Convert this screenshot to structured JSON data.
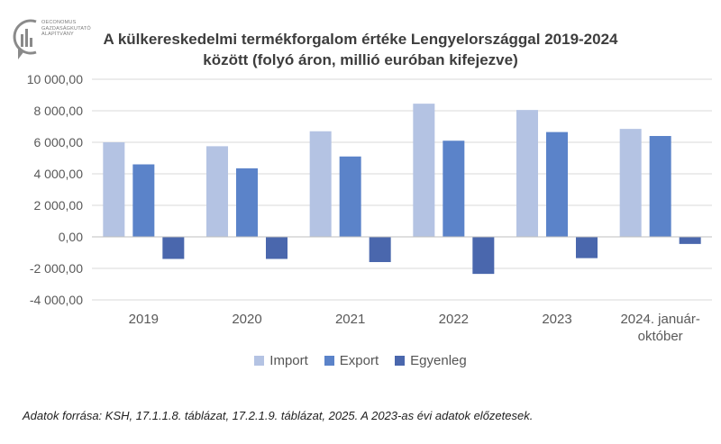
{
  "logo": {
    "line1": "OECONOMUS",
    "line2": "GAZDASÁGKUTATÓ",
    "line3": "ALAPÍTVÁNY"
  },
  "title": {
    "line1": "A külkereskedelmi termékforgalom értéke Lengyelországgal 2019-2024",
    "line2": "között (folyó áron, millió euróban kifejezve)"
  },
  "source": "Adatok forrása: KSH, 17.1.1.8. táblázat, 17.2.1.9. táblázat, 2025. A 2023-as évi adatok előzetesek.",
  "colors": {
    "import": "#b4c3e3",
    "export": "#5b83c9",
    "egyenleg": "#4a67ad",
    "grid": "#d9d9d9",
    "axis_text": "#595959"
  },
  "chart_data": {
    "type": "bar",
    "title": "A külkereskedelmi termékforgalom értéke Lengyelországgal 2019-2024 között (folyó áron, millió euróban kifejezve)",
    "categories": [
      "2019",
      "2020",
      "2021",
      "2022",
      "2023",
      "2024. január-október"
    ],
    "category_lines": [
      [
        "2019"
      ],
      [
        "2020"
      ],
      [
        "2021"
      ],
      [
        "2022"
      ],
      [
        "2023"
      ],
      [
        "2024. január-",
        "október"
      ]
    ],
    "series": [
      {
        "name": "Import",
        "values": [
          6000,
          5750,
          6700,
          8450,
          8050,
          6850
        ]
      },
      {
        "name": "Export",
        "values": [
          4600,
          4350,
          5100,
          6100,
          6650,
          6400
        ]
      },
      {
        "name": "Egyenleg",
        "values": [
          -1400,
          -1400,
          -1600,
          -2350,
          -1350,
          -450
        ]
      }
    ],
    "ylim": [
      -4000,
      10000
    ],
    "yticks": [
      10000,
      8000,
      6000,
      4000,
      2000,
      0,
      -2000,
      -4000
    ],
    "ytick_labels": [
      "10 000,00",
      "8 000,00",
      "6 000,00",
      "4 000,00",
      "2 000,00",
      "0,00",
      "-2 000,00",
      "-4 000,00"
    ],
    "xlabel": "",
    "ylabel": "",
    "grid": true,
    "legend_position": "bottom"
  }
}
